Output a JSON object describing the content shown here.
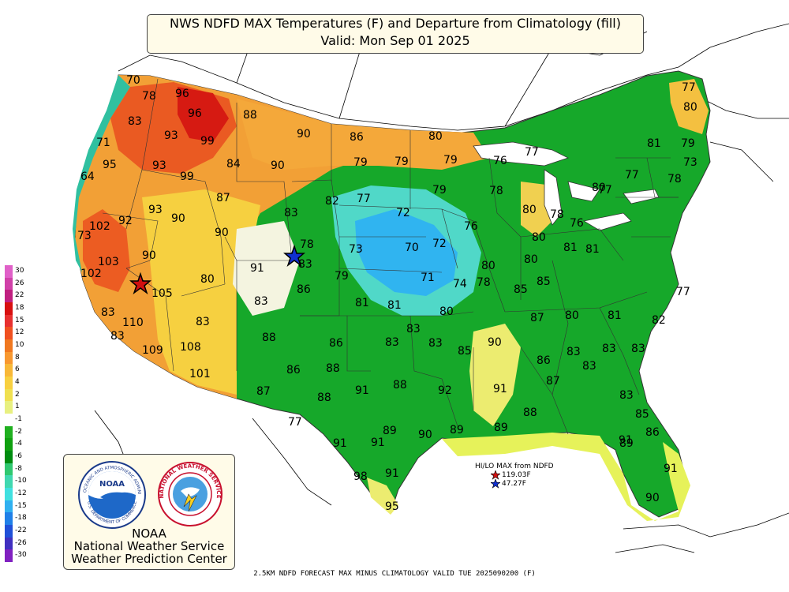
{
  "title": {
    "line1": "NWS NDFD MAX Temperatures (F) and Departure from Climatology (fill)",
    "line2": "Valid: Mon Sep 01 2025"
  },
  "legend": {
    "values": [
      "30",
      "26",
      "22",
      "18",
      "15",
      "12",
      "10",
      "8",
      "6",
      "4",
      "2",
      "1",
      "-1",
      "-2",
      "-4",
      "-6",
      "-8",
      "-10",
      "-12",
      "-15",
      "-18",
      "-22",
      "-26",
      "-30"
    ],
    "colors": [
      "#e060c8",
      "#d040a8",
      "#c02080",
      "#d81010",
      "#e83030",
      "#f05020",
      "#f07820",
      "#f89830",
      "#f8b838",
      "#f8d040",
      "#f0e050",
      "#e8f080",
      "#ffffff",
      "#20b020",
      "#10a010",
      "#008c10",
      "#30c870",
      "#40d8b0",
      "#40e0e0",
      "#30b0f0",
      "#2080e8",
      "#2050d8",
      "#4030c0",
      "#8020c0"
    ]
  },
  "temps": [
    {
      "v": "70"
    },
    {
      "v": "78"
    },
    {
      "v": "96"
    },
    {
      "v": "96"
    },
    {
      "v": "88"
    },
    {
      "v": "83"
    },
    {
      "v": "93"
    },
    {
      "v": "99"
    },
    {
      "v": "71"
    },
    {
      "v": "95"
    },
    {
      "v": "93"
    },
    {
      "v": "99"
    },
    {
      "v": "84"
    },
    {
      "v": "90"
    },
    {
      "v": "90"
    },
    {
      "v": "86"
    },
    {
      "v": "80"
    },
    {
      "v": "64"
    },
    {
      "v": "79"
    },
    {
      "v": "79"
    },
    {
      "v": "79"
    },
    {
      "v": "76"
    },
    {
      "v": "77"
    },
    {
      "v": "87"
    },
    {
      "v": "82"
    },
    {
      "v": "77"
    },
    {
      "v": "79"
    },
    {
      "v": "78"
    },
    {
      "v": "93"
    },
    {
      "v": "90"
    },
    {
      "v": "92"
    },
    {
      "v": "102"
    },
    {
      "v": "73"
    },
    {
      "v": "83"
    },
    {
      "v": "72"
    },
    {
      "v": "80"
    },
    {
      "v": "78"
    },
    {
      "v": "76"
    },
    {
      "v": "90"
    },
    {
      "v": "78"
    },
    {
      "v": "76"
    },
    {
      "v": "73"
    },
    {
      "v": "70"
    },
    {
      "v": "72"
    },
    {
      "v": "80"
    },
    {
      "v": "81"
    },
    {
      "v": "83"
    },
    {
      "v": "90"
    },
    {
      "v": "103"
    },
    {
      "v": "91"
    },
    {
      "v": "80"
    },
    {
      "v": "102"
    },
    {
      "v": "80"
    },
    {
      "v": "80"
    },
    {
      "v": "80"
    },
    {
      "v": "79"
    },
    {
      "v": "71"
    },
    {
      "v": "74"
    },
    {
      "v": "78"
    },
    {
      "v": "81"
    },
    {
      "v": "86"
    },
    {
      "v": "105"
    },
    {
      "v": "85"
    },
    {
      "v": "85"
    },
    {
      "v": "83"
    },
    {
      "v": "81"
    },
    {
      "v": "81"
    },
    {
      "v": "80"
    },
    {
      "v": "87"
    },
    {
      "v": "80"
    },
    {
      "v": "81"
    },
    {
      "v": "83"
    },
    {
      "v": "83"
    },
    {
      "v": "110"
    },
    {
      "v": "83"
    },
    {
      "v": "83"
    },
    {
      "v": "88"
    },
    {
      "v": "86"
    },
    {
      "v": "83"
    },
    {
      "v": "83"
    },
    {
      "v": "90"
    },
    {
      "v": "86"
    },
    {
      "v": "83"
    },
    {
      "v": "83"
    },
    {
      "v": "83"
    },
    {
      "v": "109"
    },
    {
      "v": "108"
    },
    {
      "v": "85"
    },
    {
      "v": "83"
    },
    {
      "v": "101"
    },
    {
      "v": "86"
    },
    {
      "v": "88"
    },
    {
      "v": "91"
    },
    {
      "v": "88"
    },
    {
      "v": "92"
    },
    {
      "v": "91"
    },
    {
      "v": "87"
    },
    {
      "v": "87"
    },
    {
      "v": "88"
    },
    {
      "v": "88"
    },
    {
      "v": "83"
    },
    {
      "v": "77"
    },
    {
      "v": "85"
    },
    {
      "v": "89"
    },
    {
      "v": "90"
    },
    {
      "v": "89"
    },
    {
      "v": "89"
    },
    {
      "v": "91"
    },
    {
      "v": "91"
    },
    {
      "v": "91"
    },
    {
      "v": "91"
    },
    {
      "v": "98"
    },
    {
      "v": "91"
    },
    {
      "v": "95"
    },
    {
      "v": "90"
    },
    {
      "v": "77"
    },
    {
      "v": "77"
    },
    {
      "v": "79"
    },
    {
      "v": "73"
    },
    {
      "v": "78"
    },
    {
      "v": "82"
    },
    {
      "v": "77"
    },
    {
      "v": "86"
    },
    {
      "v": "89"
    },
    {
      "v": "80"
    },
    {
      "v": "77"
    },
    {
      "v": "81"
    }
  ],
  "hilo": {
    "header": "HI/LO MAX from NDFD",
    "high": "119.03F",
    "low": "47.27F",
    "high_color": "#d01010",
    "low_color": "#1030d0"
  },
  "logo": {
    "noaa_badge": "NOAA",
    "noaa_ring": "NATIONAL OCEANIC AND ATMOSPHERIC ADMINISTRATION",
    "noaa_ring_bottom": "U.S. DEPARTMENT OF COMMERCE",
    "nws_ring": "NATIONAL WEATHER SERVICE",
    "line1": "NOAA",
    "line2": "National Weather Service",
    "line3": "Weather Prediction Center"
  },
  "footer": "2.5KM NDFD FORECAST MAX MINUS CLIMATOLOGY VALID TUE 2025090200 (F)"
}
